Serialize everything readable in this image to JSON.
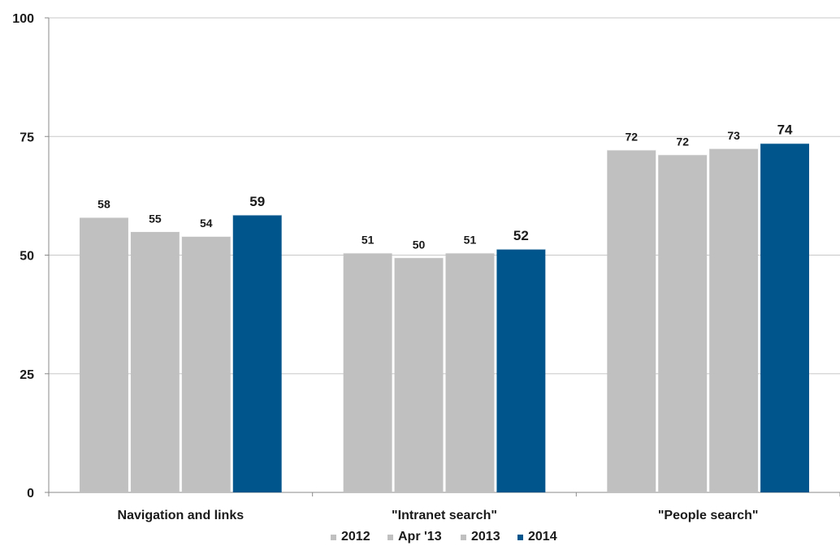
{
  "chart_data": {
    "type": "bar",
    "categories": [
      "Navigation and links",
      "\"Intranet search\"",
      "\"People search\""
    ],
    "series": [
      {
        "name": "2012",
        "values": [
          58,
          51,
          72
        ],
        "color": "#c0c0c0"
      },
      {
        "name": "Apr '13",
        "values": [
          55,
          50,
          72
        ],
        "color": "#c0c0c0"
      },
      {
        "name": "2013",
        "values": [
          54,
          51,
          73
        ],
        "color": "#c0c0c0"
      },
      {
        "name": "2014",
        "values": [
          59,
          52,
          74
        ],
        "color": "#00558c"
      }
    ],
    "bar_heights": [
      [
        58,
        55,
        54,
        58.5
      ],
      [
        50.5,
        49.5,
        50.5,
        51.3
      ],
      [
        72.2,
        71.2,
        72.5,
        73.6
      ]
    ],
    "yticks": [
      "0",
      "25",
      "50",
      "75",
      "100"
    ],
    "ytick_values": [
      0,
      25,
      50,
      75,
      100
    ],
    "ylim": [
      0,
      100
    ],
    "grid": true,
    "legend_position": "bottom",
    "title": "",
    "xlabel": "",
    "ylabel": ""
  }
}
